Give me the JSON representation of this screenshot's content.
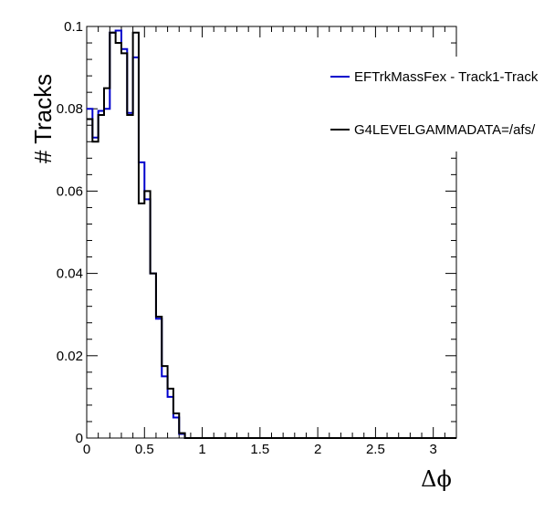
{
  "chart_data": {
    "type": "line",
    "drawstyle": "histogram-step",
    "xlabel": "Δϕ",
    "ylabel": "# Tracks",
    "xlim": [
      0,
      3.2
    ],
    "ylim": [
      0,
      0.1
    ],
    "xticks": [
      0,
      0.5,
      1,
      1.5,
      2,
      2.5,
      3
    ],
    "xtick_labels": [
      "0",
      "0.5",
      "1",
      "1.5",
      "2",
      "2.5",
      "3"
    ],
    "yticks": [
      0,
      0.02,
      0.04,
      0.06,
      0.08,
      0.1
    ],
    "ytick_labels": [
      "0",
      "0.02",
      "0.04",
      "0.06",
      "0.08",
      "0.1"
    ],
    "bin_width": 0.05,
    "grid": false,
    "legend_position": "top-right",
    "series": [
      {
        "name": "EFTrkMassFex - Track1-Track",
        "color": "#0000cc",
        "values": [
          0.08,
          0.073,
          0.0795,
          0.08,
          0.0985,
          0.099,
          0.0945,
          0.079,
          0.0925,
          0.067,
          0.058,
          0.04,
          0.029,
          0.015,
          0.01,
          0.005,
          0.001,
          0,
          0,
          0,
          0,
          0,
          0,
          0,
          0,
          0,
          0,
          0,
          0,
          0,
          0,
          0,
          0,
          0,
          0,
          0,
          0,
          0,
          0,
          0,
          0,
          0,
          0,
          0,
          0,
          0,
          0,
          0,
          0,
          0,
          0,
          0,
          0,
          0,
          0,
          0,
          0,
          0,
          0,
          0,
          0,
          0,
          0,
          0
        ]
      },
      {
        "name": "G4LEVELGAMMADATA=/afs/",
        "color": "#000000",
        "values": [
          0.0775,
          0.072,
          0.0785,
          0.085,
          0.0985,
          0.096,
          0.0935,
          0.0785,
          0.0985,
          0.057,
          0.06,
          0.04,
          0.0295,
          0.0175,
          0.012,
          0.006,
          0.0012,
          0,
          0,
          0,
          0,
          0,
          0,
          0,
          0,
          0,
          0,
          0,
          0,
          0,
          0,
          0,
          0,
          0,
          0,
          0,
          0,
          0,
          0,
          0,
          0,
          0,
          0,
          0,
          0,
          0,
          0,
          0,
          0,
          0,
          0,
          0,
          0,
          0,
          0,
          0,
          0,
          0,
          0,
          0,
          0,
          0,
          0,
          0
        ]
      }
    ]
  }
}
